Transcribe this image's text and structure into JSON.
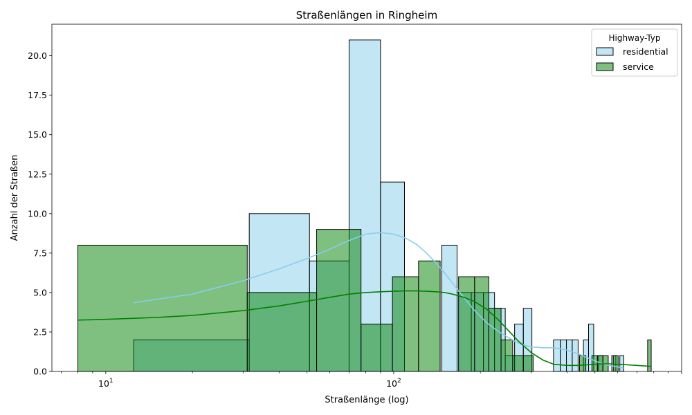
{
  "chart_data": {
    "type": "histogram",
    "title": "Straßenlängen in Ringheim",
    "xlabel": "Straßenlänge (log)",
    "ylabel": "Anzahl der Straßen",
    "xscale": "log",
    "xlim": [
      6.5,
      1000
    ],
    "ylim": [
      0,
      22
    ],
    "x_tick_labels": [
      "10^1",
      "10^2"
    ],
    "y_ticks": [
      "0.0",
      "2.5",
      "5.0",
      "7.5",
      "10.0",
      "12.5",
      "15.0",
      "17.5",
      "20.0"
    ],
    "legend": {
      "title": "Highway-Typ",
      "position": "top-right",
      "entries": [
        "residential",
        "service"
      ]
    },
    "series": [
      {
        "name": "residential",
        "color": "#87ceeb",
        "bins": [
          {
            "x0": 12.5,
            "x1": 31.5,
            "count": 2
          },
          {
            "x0": 31.5,
            "x1": 51,
            "count": 10
          },
          {
            "x0": 51,
            "x1": 70,
            "count": 7
          },
          {
            "x0": 70,
            "x1": 90,
            "count": 21
          },
          {
            "x0": 90,
            "x1": 109,
            "count": 12
          },
          {
            "x0": 147,
            "x1": 166,
            "count": 8
          },
          {
            "x0": 166,
            "x1": 186,
            "count": 5
          },
          {
            "x0": 186,
            "x1": 205,
            "count": 5
          },
          {
            "x0": 205,
            "x1": 224,
            "count": 5
          },
          {
            "x0": 224,
            "x1": 244,
            "count": 4
          },
          {
            "x0": 244,
            "x1": 263,
            "count": 1
          },
          {
            "x0": 263,
            "x1": 282,
            "count": 3
          },
          {
            "x0": 282,
            "x1": 302,
            "count": 4
          },
          {
            "x0": 359,
            "x1": 379,
            "count": 2
          },
          {
            "x0": 379,
            "x1": 398,
            "count": 2
          },
          {
            "x0": 398,
            "x1": 417,
            "count": 2
          },
          {
            "x0": 417,
            "x1": 437,
            "count": 2
          },
          {
            "x0": 456,
            "x1": 475,
            "count": 2
          },
          {
            "x0": 475,
            "x1": 495,
            "count": 3
          },
          {
            "x0": 514,
            "x1": 533,
            "count": 1
          },
          {
            "x0": 572,
            "x1": 591,
            "count": 1
          },
          {
            "x0": 610,
            "x1": 630,
            "count": 1
          }
        ],
        "kde": {
          "x": [
            12.5,
            20,
            30,
            40,
            50,
            60,
            70,
            80,
            90,
            100,
            110,
            120,
            130,
            140,
            150,
            160,
            175,
            190,
            210,
            230,
            250,
            270,
            300,
            330,
            360,
            400,
            440,
            480,
            520,
            560,
            600,
            630
          ],
          "y": [
            4.35,
            4.9,
            5.75,
            6.5,
            7.15,
            7.75,
            8.3,
            8.7,
            8.8,
            8.7,
            8.45,
            8.05,
            7.5,
            6.9,
            6.25,
            5.6,
            4.7,
            3.9,
            3.1,
            2.55,
            2.15,
            1.8,
            1.55,
            1.5,
            1.5,
            1.35,
            1.1,
            0.8,
            0.55,
            0.38,
            0.28,
            0.22
          ]
        }
      },
      {
        "name": "service",
        "color": "#008000",
        "bins": [
          {
            "x0": 8,
            "x1": 31,
            "count": 8
          },
          {
            "x0": 31,
            "x1": 54,
            "count": 5
          },
          {
            "x0": 54,
            "x1": 77,
            "count": 9
          },
          {
            "x0": 77,
            "x1": 99,
            "count": 3
          },
          {
            "x0": 99,
            "x1": 122,
            "count": 6
          },
          {
            "x0": 122,
            "x1": 145,
            "count": 7
          },
          {
            "x0": 168,
            "x1": 191,
            "count": 6
          },
          {
            "x0": 191,
            "x1": 214,
            "count": 6
          },
          {
            "x0": 214,
            "x1": 236,
            "count": 4
          },
          {
            "x0": 236,
            "x1": 259,
            "count": 2
          },
          {
            "x0": 259,
            "x1": 282,
            "count": 1
          },
          {
            "x0": 282,
            "x1": 305,
            "count": 1
          },
          {
            "x0": 442,
            "x1": 465,
            "count": 1
          },
          {
            "x0": 488,
            "x1": 510,
            "count": 1
          },
          {
            "x0": 510,
            "x1": 533,
            "count": 1
          },
          {
            "x0": 533,
            "x1": 556,
            "count": 1
          },
          {
            "x0": 579,
            "x1": 602,
            "count": 1
          },
          {
            "x0": 762,
            "x1": 784,
            "count": 2
          }
        ],
        "kde": {
          "x": [
            8,
            10,
            15,
            20,
            30,
            40,
            50,
            60,
            70,
            80,
            90,
            100,
            110,
            120,
            130,
            140,
            150,
            160,
            175,
            190,
            210,
            230,
            250,
            270,
            300,
            330,
            360,
            400,
            440,
            480,
            520,
            560,
            600,
            650,
            700,
            784
          ],
          "y": [
            3.25,
            3.3,
            3.42,
            3.55,
            3.85,
            4.15,
            4.45,
            4.7,
            4.9,
            5.0,
            5.05,
            5.08,
            5.1,
            5.1,
            5.08,
            5.05,
            5.0,
            4.9,
            4.7,
            4.45,
            3.95,
            3.3,
            2.6,
            1.95,
            1.2,
            0.72,
            0.45,
            0.38,
            0.38,
            0.43,
            0.48,
            0.48,
            0.45,
            0.42,
            0.38,
            0.32
          ]
        }
      }
    ]
  }
}
